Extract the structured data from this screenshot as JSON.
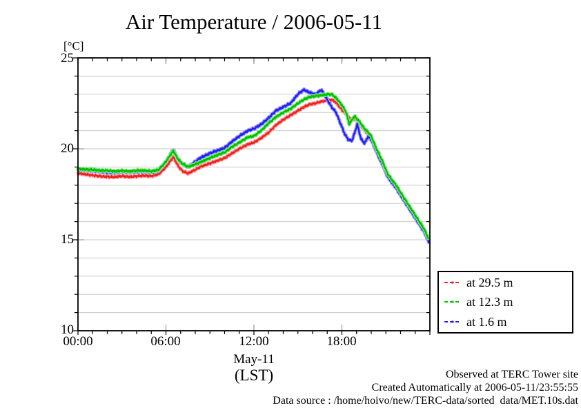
{
  "title": "Air Temperature / 2006-05-11",
  "y_unit_label": "[°C]",
  "y_axis": {
    "tick_labels": [
      "25",
      "20",
      "15",
      "10"
    ]
  },
  "x_axis": {
    "tick_labels": [
      "00:00",
      "06:00",
      "12:00",
      "18:00"
    ],
    "label_line1": "May-11",
    "label_line2": "(LST)"
  },
  "footer": {
    "line1": "Observed at TERC Tower site",
    "line2": "Created Automatically at 2006-05-11/23:55:55",
    "line3": "Data source : /home/hoivo/new/TERC-data/sorted  data/MET.10s.dat"
  },
  "legend": {
    "entries": [
      {
        "label": "at 29.5 m",
        "color": "#ee2222",
        "halo": "#ffaaaa"
      },
      {
        "label": "at 12.3 m",
        "color": "#00c000",
        "halo": "#8ce88c"
      },
      {
        "label": "at 1.6 m",
        "color": "#2020ee",
        "halo": "#9a9aff"
      }
    ]
  },
  "chart_data": {
    "type": "line",
    "title": "Air Temperature / 2006-05-11",
    "xlabel": "May-11 (LST)",
    "ylabel": "[°C]",
    "x_unit": "hours LST",
    "xlim_hours": [
      0,
      24
    ],
    "ylim": [
      10,
      25
    ],
    "x_major_ticks_hours": [
      0,
      6,
      12,
      18,
      24
    ],
    "x_minor_tick_step_hours": 1,
    "y_major_ticks": [
      10,
      15,
      20,
      25
    ],
    "y_minor_tick_step": 1,
    "grid": "horizontal gray lines every 1 degC, no vertical gridlines",
    "legend_position": "outside lower right",
    "series": [
      {
        "name": "at 29.5 m",
        "color": "#ee2222",
        "halo": "#ffaaaa",
        "points": [
          [
            0,
            18.65
          ],
          [
            0.5,
            18.6
          ],
          [
            1,
            18.55
          ],
          [
            1.5,
            18.5
          ],
          [
            2,
            18.47
          ],
          [
            2.5,
            18.45
          ],
          [
            3,
            18.5
          ],
          [
            3.5,
            18.46
          ],
          [
            4,
            18.5
          ],
          [
            4.5,
            18.53
          ],
          [
            5,
            18.5
          ],
          [
            5.5,
            18.6
          ],
          [
            6,
            19.0
          ],
          [
            6.5,
            19.55
          ],
          [
            6.8,
            19.1
          ],
          [
            7.1,
            18.8
          ],
          [
            7.5,
            18.65
          ],
          [
            8,
            18.85
          ],
          [
            8.33,
            19.0
          ],
          [
            9,
            19.2
          ],
          [
            9.5,
            19.35
          ],
          [
            10,
            19.5
          ],
          [
            10.5,
            19.75
          ],
          [
            11,
            20.0
          ],
          [
            11.6,
            20.25
          ],
          [
            12,
            20.35
          ],
          [
            12.5,
            20.6
          ],
          [
            13,
            20.9
          ],
          [
            13.5,
            21.3
          ],
          [
            14,
            21.6
          ],
          [
            14.5,
            21.85
          ],
          [
            15,
            22.1
          ],
          [
            15.4,
            22.3
          ],
          [
            15.8,
            22.45
          ],
          [
            16.2,
            22.5
          ],
          [
            16.6,
            22.6
          ],
          [
            17,
            22.65
          ],
          [
            17.3,
            22.7
          ],
          [
            17.6,
            22.55
          ],
          [
            18,
            22.15
          ],
          [
            18.3,
            21.9
          ],
          [
            18.6,
            21.6
          ],
          [
            18.9,
            21.65
          ],
          [
            19.2,
            21.4
          ],
          [
            19.5,
            21.05
          ],
          [
            19.8,
            20.8
          ],
          [
            20,
            20.6
          ],
          [
            20.3,
            20.0
          ],
          [
            20.75,
            19.2
          ],
          [
            21.1,
            18.5
          ],
          [
            21.4,
            18.2
          ],
          [
            21.7,
            17.9
          ],
          [
            22,
            17.5
          ],
          [
            22.4,
            17.0
          ],
          [
            22.8,
            16.5
          ],
          [
            23.2,
            16.0
          ],
          [
            23.6,
            15.5
          ],
          [
            23.92,
            14.95
          ]
        ]
      },
      {
        "name": "at 1.6 m",
        "color": "#2020ee",
        "halo": "#9a9aff",
        "points": [
          [
            0,
            18.85
          ],
          [
            0.5,
            18.82
          ],
          [
            1,
            18.8
          ],
          [
            1.5,
            18.76
          ],
          [
            2,
            18.72
          ],
          [
            2.5,
            18.7
          ],
          [
            3,
            18.75
          ],
          [
            3.5,
            18.71
          ],
          [
            4,
            18.75
          ],
          [
            4.5,
            18.76
          ],
          [
            5,
            18.72
          ],
          [
            5.5,
            18.8
          ],
          [
            6,
            19.27
          ],
          [
            6.5,
            19.97
          ],
          [
            6.8,
            19.45
          ],
          [
            7.1,
            19.2
          ],
          [
            7.5,
            19.0
          ],
          [
            8,
            19.3
          ],
          [
            8.33,
            19.5
          ],
          [
            9,
            19.75
          ],
          [
            9.5,
            19.9
          ],
          [
            10,
            20.05
          ],
          [
            10.5,
            20.4
          ],
          [
            11,
            20.7
          ],
          [
            11.6,
            21.0
          ],
          [
            12,
            21.1
          ],
          [
            12.5,
            21.35
          ],
          [
            13,
            21.7
          ],
          [
            13.5,
            22.1
          ],
          [
            14,
            22.3
          ],
          [
            14.5,
            22.5
          ],
          [
            15,
            23.0
          ],
          [
            15.4,
            23.25
          ],
          [
            15.8,
            23.1
          ],
          [
            16.2,
            23.0
          ],
          [
            16.6,
            23.25
          ],
          [
            17,
            22.7
          ],
          [
            17.3,
            22.3
          ],
          [
            17.6,
            22.0
          ],
          [
            17.9,
            21.4
          ],
          [
            18.2,
            20.8
          ],
          [
            18.45,
            20.5
          ],
          [
            18.7,
            20.45
          ],
          [
            19.05,
            21.35
          ],
          [
            19.3,
            20.55
          ],
          [
            19.55,
            20.3
          ],
          [
            19.8,
            20.7
          ],
          [
            20,
            20.5
          ],
          [
            20.3,
            19.95
          ],
          [
            20.6,
            19.4
          ],
          [
            20.85,
            19.0
          ],
          [
            21.1,
            18.5
          ],
          [
            21.4,
            18.15
          ],
          [
            21.7,
            17.85
          ],
          [
            22,
            17.45
          ],
          [
            22.4,
            16.95
          ],
          [
            22.8,
            16.45
          ],
          [
            23.2,
            15.95
          ],
          [
            23.6,
            15.45
          ],
          [
            23.92,
            14.9
          ]
        ]
      },
      {
        "name": "at 12.3 m",
        "color": "#00c000",
        "halo": "#8ce88c",
        "points": [
          [
            0,
            18.9
          ],
          [
            0.5,
            18.87
          ],
          [
            1,
            18.85
          ],
          [
            1.5,
            18.8
          ],
          [
            2,
            18.8
          ],
          [
            2.5,
            18.76
          ],
          [
            3,
            18.8
          ],
          [
            3.5,
            18.76
          ],
          [
            4,
            18.8
          ],
          [
            4.5,
            18.8
          ],
          [
            5,
            18.76
          ],
          [
            5.5,
            18.85
          ],
          [
            6,
            19.3
          ],
          [
            6.5,
            19.9
          ],
          [
            6.8,
            19.45
          ],
          [
            7.1,
            19.2
          ],
          [
            7.5,
            19.0
          ],
          [
            8,
            19.15
          ],
          [
            8.33,
            19.26
          ],
          [
            9,
            19.5
          ],
          [
            9.5,
            19.65
          ],
          [
            10,
            19.8
          ],
          [
            10.5,
            20.1
          ],
          [
            11,
            20.35
          ],
          [
            11.6,
            20.65
          ],
          [
            12,
            20.7
          ],
          [
            12.5,
            21.0
          ],
          [
            13,
            21.4
          ],
          [
            13.5,
            21.75
          ],
          [
            14,
            22.0
          ],
          [
            14.5,
            22.2
          ],
          [
            15,
            22.5
          ],
          [
            15.4,
            22.7
          ],
          [
            15.8,
            22.85
          ],
          [
            16.2,
            22.9
          ],
          [
            16.6,
            22.95
          ],
          [
            17,
            23.0
          ],
          [
            17.3,
            23.0
          ],
          [
            17.6,
            22.8
          ],
          [
            18,
            22.4
          ],
          [
            18.3,
            22.0
          ],
          [
            18.5,
            21.35
          ],
          [
            18.85,
            21.8
          ],
          [
            19.2,
            21.5
          ],
          [
            19.5,
            21.15
          ],
          [
            19.8,
            20.9
          ],
          [
            20,
            20.7
          ],
          [
            20.3,
            20.1
          ],
          [
            20.75,
            19.35
          ],
          [
            21.1,
            18.65
          ],
          [
            21.4,
            18.3
          ],
          [
            21.7,
            18.0
          ],
          [
            22,
            17.6
          ],
          [
            22.4,
            17.1
          ],
          [
            22.8,
            16.6
          ],
          [
            23.2,
            16.1
          ],
          [
            23.6,
            15.6
          ],
          [
            23.92,
            15.05
          ]
        ]
      }
    ]
  }
}
